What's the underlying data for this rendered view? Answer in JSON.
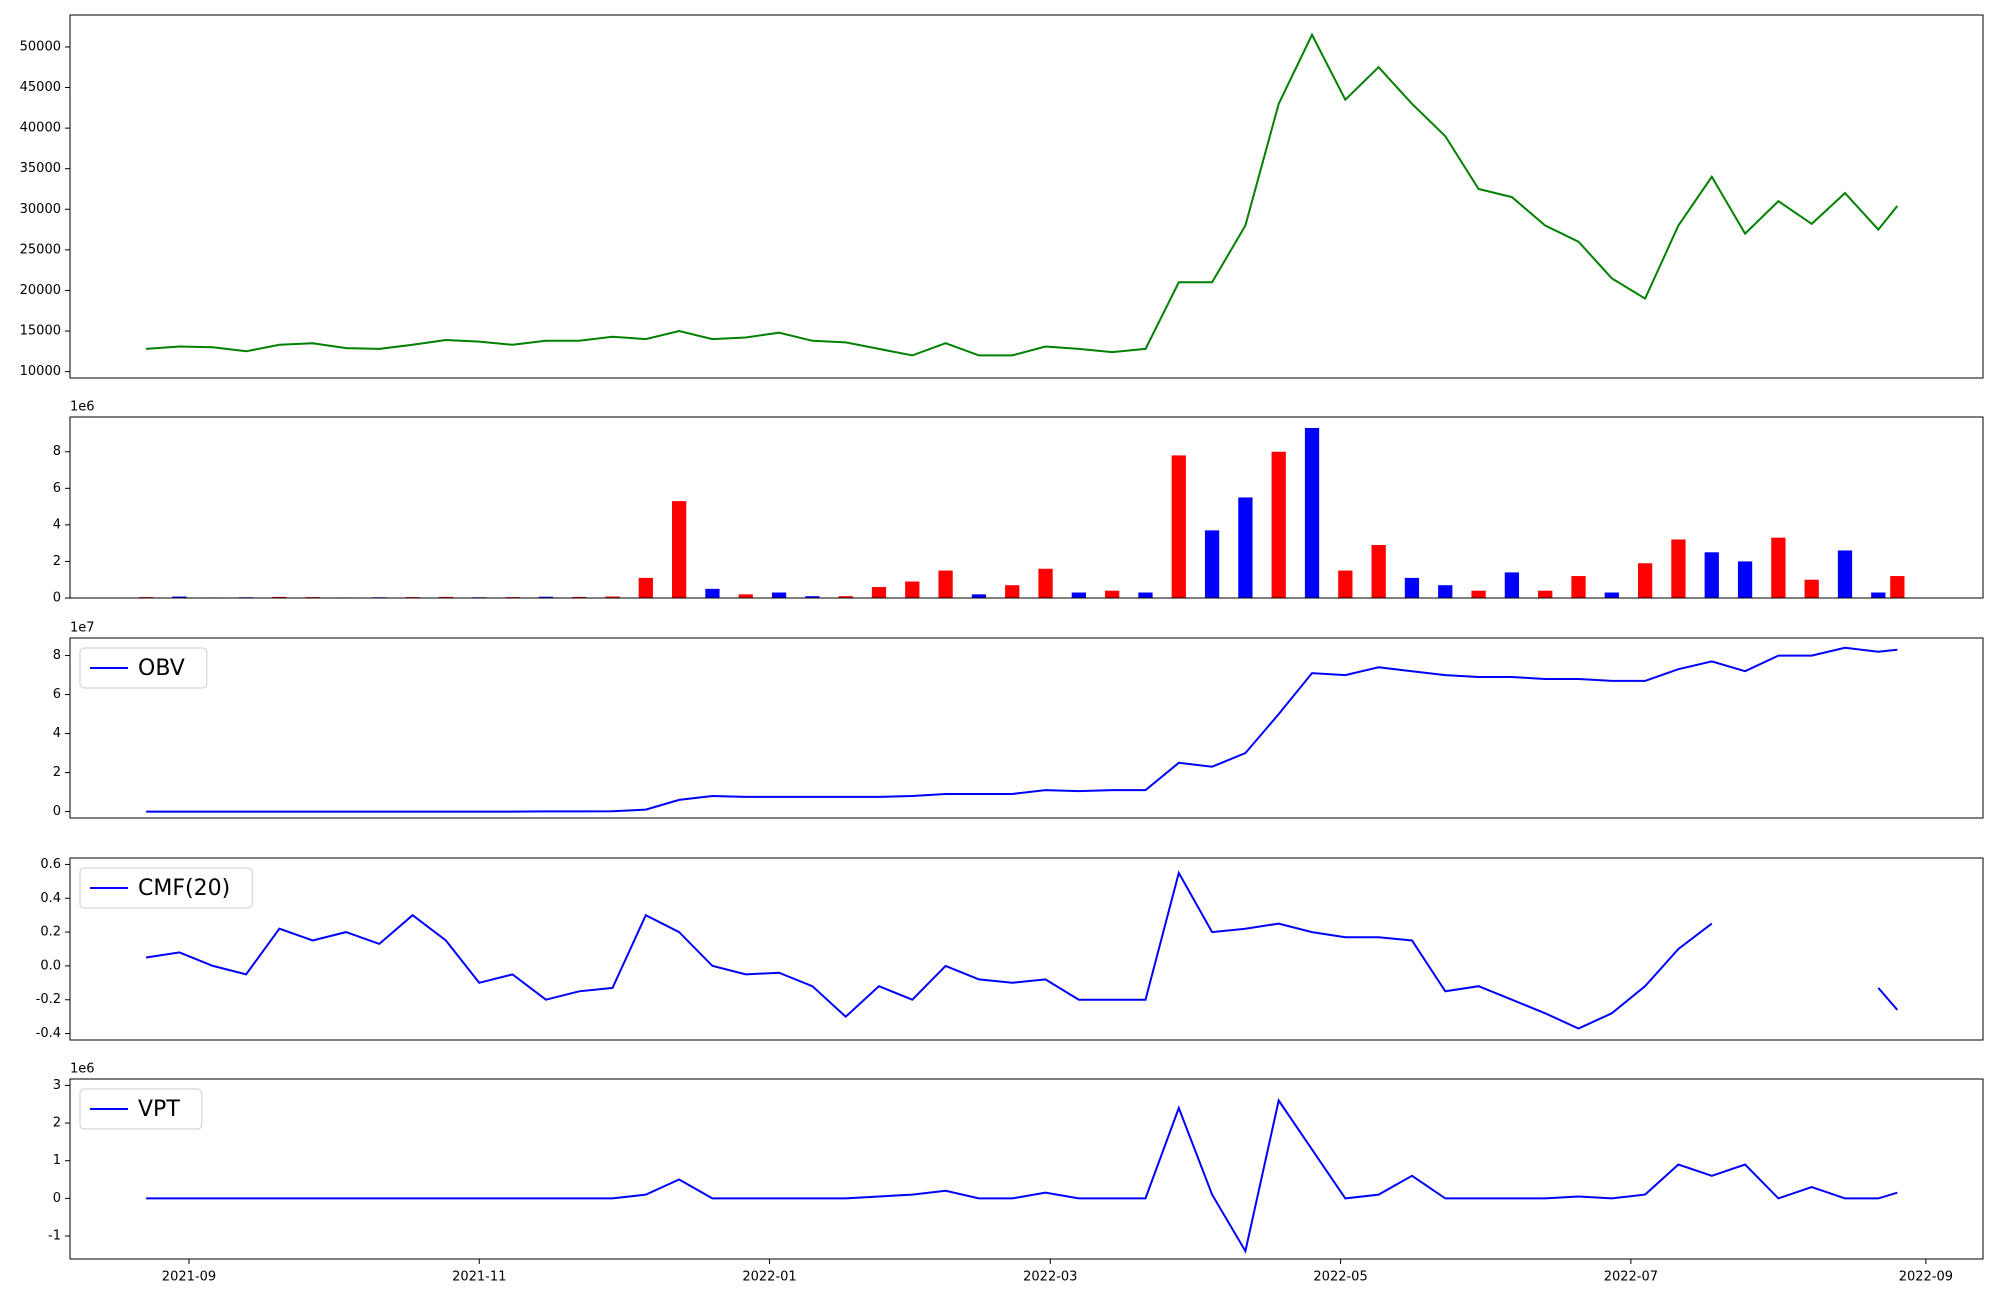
{
  "chart_data": [
    {
      "type": "line",
      "color": "green",
      "x": [
        "2021-08-23",
        "2021-08-30",
        "2021-09-06",
        "2021-09-13",
        "2021-09-20",
        "2021-09-27",
        "2021-10-04",
        "2021-10-11",
        "2021-10-18",
        "2021-10-25",
        "2021-11-01",
        "2021-11-08",
        "2021-11-15",
        "2021-11-22",
        "2021-11-29",
        "2021-12-06",
        "2021-12-13",
        "2021-12-20",
        "2021-12-27",
        "2022-01-03",
        "2022-01-10",
        "2022-01-17",
        "2022-01-24",
        "2022-01-31",
        "2022-02-07",
        "2022-02-14",
        "2022-02-21",
        "2022-02-28",
        "2022-03-07",
        "2022-03-14",
        "2022-03-21",
        "2022-03-28",
        "2022-04-04",
        "2022-04-11",
        "2022-04-18",
        "2022-04-25",
        "2022-05-02",
        "2022-05-09",
        "2022-05-16",
        "2022-05-23",
        "2022-05-30",
        "2022-06-06",
        "2022-06-13",
        "2022-06-20",
        "2022-06-27",
        "2022-07-04",
        "2022-07-11",
        "2022-07-18",
        "2022-07-25",
        "2022-08-01",
        "2022-08-08",
        "2022-08-15",
        "2022-08-22",
        "2022-08-26"
      ],
      "values": [
        12800,
        13100,
        13000,
        12500,
        13300,
        13500,
        12900,
        12800,
        13300,
        13900,
        13700,
        13300,
        13800,
        13800,
        14300,
        14000,
        15000,
        14000,
        14200,
        14800,
        13800,
        13600,
        12800,
        12000,
        13500,
        12000,
        12000,
        13100,
        12800,
        12400,
        12800,
        21000,
        21000,
        28000,
        43000,
        51500,
        43500,
        47500,
        43000,
        39000,
        32500,
        31500,
        28000,
        26000,
        21500,
        19000,
        28000,
        34000,
        27000,
        31000,
        28200,
        32000,
        27500,
        30400
      ],
      "xlim": [
        "2021-08-07",
        "2022-09-13"
      ],
      "ylim": [
        9213,
        53937
      ],
      "yticks": [
        10000,
        15000,
        20000,
        25000,
        30000,
        35000,
        40000,
        45000,
        50000
      ]
    },
    {
      "type": "bar",
      "offset_label": "1e6",
      "x": [
        "2021-08-23",
        "2021-08-30",
        "2021-09-06",
        "2021-09-13",
        "2021-09-20",
        "2021-09-27",
        "2021-10-04",
        "2021-10-11",
        "2021-10-18",
        "2021-10-25",
        "2021-11-01",
        "2021-11-08",
        "2021-11-15",
        "2021-11-22",
        "2021-11-29",
        "2021-12-06",
        "2021-12-13",
        "2021-12-20",
        "2021-12-27",
        "2022-01-03",
        "2022-01-10",
        "2022-01-17",
        "2022-01-24",
        "2022-01-31",
        "2022-02-07",
        "2022-02-14",
        "2022-02-21",
        "2022-02-28",
        "2022-03-07",
        "2022-03-14",
        "2022-03-21",
        "2022-03-28",
        "2022-04-04",
        "2022-04-11",
        "2022-04-18",
        "2022-04-25",
        "2022-05-02",
        "2022-05-09",
        "2022-05-16",
        "2022-05-23",
        "2022-05-30",
        "2022-06-06",
        "2022-06-13",
        "2022-06-20",
        "2022-06-27",
        "2022-07-04",
        "2022-07-11",
        "2022-07-18",
        "2022-07-25",
        "2022-08-01",
        "2022-08-08",
        "2022-08-15",
        "2022-08-22",
        "2022-08-26"
      ],
      "values": [
        0.05,
        0.08,
        0.03,
        0.04,
        0.06,
        0.05,
        0.03,
        0.04,
        0.05,
        0.06,
        0.04,
        0.05,
        0.07,
        0.06,
        0.08,
        1.1,
        5.3,
        0.5,
        0.2,
        0.3,
        0.1,
        0.1,
        0.6,
        0.9,
        1.5,
        0.2,
        0.7,
        1.6,
        0.3,
        0.4,
        0.3,
        7.8,
        3.7,
        5.5,
        8.0,
        9.3,
        1.5,
        2.9,
        1.1,
        0.7,
        0.4,
        1.4,
        0.4,
        1.2,
        0.3,
        1.9,
        3.2,
        2.5,
        2.0,
        3.3,
        1.0,
        2.6,
        0.3,
        1.2
      ],
      "colors": [
        "red",
        "blue",
        "red",
        "blue",
        "red",
        "red",
        "blue",
        "blue",
        "red",
        "red",
        "blue",
        "red",
        "blue",
        "red",
        "red",
        "red",
        "red",
        "blue",
        "red",
        "blue",
        "blue",
        "red",
        "red",
        "red",
        "red",
        "blue",
        "red",
        "red",
        "blue",
        "red",
        "blue",
        "red",
        "blue",
        "blue",
        "red",
        "blue",
        "red",
        "red",
        "blue",
        "blue",
        "red",
        "blue",
        "red",
        "red",
        "blue",
        "red",
        "red",
        "blue",
        "blue",
        "red",
        "red",
        "blue",
        "blue",
        "red"
      ],
      "xlim": [
        "2021-08-07",
        "2022-09-13"
      ],
      "ylim": [
        0,
        9.9
      ],
      "yticks": [
        0,
        2,
        4,
        6,
        8
      ]
    },
    {
      "type": "line",
      "offset_label": "1e7",
      "legend": "upper left",
      "x": [
        "2021-08-23",
        "2021-08-30",
        "2021-09-06",
        "2021-09-13",
        "2021-09-20",
        "2021-09-27",
        "2021-10-04",
        "2021-10-11",
        "2021-10-18",
        "2021-10-25",
        "2021-11-01",
        "2021-11-08",
        "2021-11-15",
        "2021-11-22",
        "2021-11-29",
        "2021-12-06",
        "2021-12-13",
        "2021-12-20",
        "2021-12-27",
        "2022-01-03",
        "2022-01-10",
        "2022-01-17",
        "2022-01-24",
        "2022-01-31",
        "2022-02-07",
        "2022-02-14",
        "2022-02-21",
        "2022-02-28",
        "2022-03-07",
        "2022-03-14",
        "2022-03-21",
        "2022-03-28",
        "2022-04-04",
        "2022-04-11",
        "2022-04-18",
        "2022-04-25",
        "2022-05-02",
        "2022-05-09",
        "2022-05-16",
        "2022-05-23",
        "2022-05-30",
        "2022-06-06",
        "2022-06-13",
        "2022-06-20",
        "2022-06-27",
        "2022-07-04",
        "2022-07-11",
        "2022-07-18",
        "2022-07-25",
        "2022-08-01",
        "2022-08-08",
        "2022-08-15",
        "2022-08-22",
        "2022-08-26"
      ],
      "series": [
        {
          "name": "OBV",
          "color": "blue",
          "values": [
            0,
            0,
            0,
            0,
            0,
            0,
            0,
            0,
            0,
            0,
            0,
            0,
            0.01,
            0.01,
            0.02,
            0.1,
            0.6,
            0.8,
            0.75,
            0.75,
            0.75,
            0.75,
            0.75,
            0.8,
            0.9,
            0.9,
            0.9,
            1.1,
            1.05,
            1.1,
            1.1,
            2.5,
            2.3,
            3.0,
            5.0,
            7.1,
            7.0,
            7.4,
            7.2,
            7.0,
            6.9,
            6.9,
            6.8,
            6.8,
            6.7,
            6.7,
            7.3,
            7.7,
            7.2,
            8.0,
            8.0,
            8.4,
            8.2,
            8.3
          ]
        }
      ],
      "xlim": [
        "2021-08-07",
        "2022-09-13"
      ],
      "ylim": [
        -0.33,
        8.9
      ],
      "yticks": [
        0,
        2,
        4,
        6,
        8
      ]
    },
    {
      "type": "line",
      "legend": "upper left",
      "x": [
        "2021-08-23",
        "2021-08-30",
        "2021-09-06",
        "2021-09-13",
        "2021-09-20",
        "2021-09-27",
        "2021-10-04",
        "2021-10-11",
        "2021-10-18",
        "2021-10-25",
        "2021-11-01",
        "2021-11-08",
        "2021-11-15",
        "2021-11-22",
        "2021-11-29",
        "2021-12-06",
        "2021-12-13",
        "2021-12-20",
        "2021-12-27",
        "2022-01-03",
        "2022-01-10",
        "2022-01-17",
        "2022-01-24",
        "2022-01-31",
        "2022-02-07",
        "2022-02-14",
        "2022-02-21",
        "2022-02-28",
        "2022-03-07",
        "2022-03-14",
        "2022-03-21",
        "2022-03-28",
        "2022-04-04",
        "2022-04-11",
        "2022-04-18",
        "2022-04-25",
        "2022-05-02",
        "2022-05-09",
        "2022-05-16",
        "2022-05-23",
        "2022-05-30",
        "2022-06-06",
        "2022-06-13",
        "2022-06-20",
        "2022-06-27",
        "2022-07-04",
        "2022-07-11",
        "2022-07-18",
        "2022-07-25",
        "2022-08-01",
        "2022-08-08",
        "2022-08-15",
        "2022-08-22",
        "2022-08-26"
      ],
      "series": [
        {
          "name": "CMF(20)",
          "color": "blue",
          "values": [
            0.05,
            0.08,
            0.0,
            -0.05,
            0.22,
            0.15,
            0.2,
            0.13,
            0.3,
            0.15,
            -0.1,
            -0.05,
            -0.2,
            -0.15,
            -0.13,
            0.3,
            0.2,
            0.0,
            -0.05,
            -0.04,
            -0.12,
            -0.3,
            -0.12,
            -0.2,
            0.0,
            -0.08,
            -0.1,
            -0.08,
            -0.2,
            -0.2,
            -0.2,
            0.55,
            0.2,
            0.22,
            0.25,
            0.2,
            0.17,
            0.17,
            0.15,
            -0.15,
            -0.12,
            -0.2,
            -0.28,
            -0.37,
            -0.28,
            -0.12,
            0.1,
            0.25,
            null,
            null,
            null,
            null,
            -0.13,
            -0.26
          ]
        }
      ],
      "xlim": [
        "2021-08-07",
        "2022-09-13"
      ],
      "ylim": [
        -0.438,
        0.638
      ],
      "yticks": [
        -0.4,
        -0.2,
        {
          "value": 0,
          "label": "0.0"
        },
        0.2,
        0.4,
        0.6
      ]
    },
    {
      "type": "line",
      "offset_label": "1e6",
      "legend": "upper left",
      "x": [
        "2021-08-23",
        "2021-08-30",
        "2021-09-06",
        "2021-09-13",
        "2021-09-20",
        "2021-09-27",
        "2021-10-04",
        "2021-10-11",
        "2021-10-18",
        "2021-10-25",
        "2021-11-01",
        "2021-11-08",
        "2021-11-15",
        "2021-11-22",
        "2021-11-29",
        "2021-12-06",
        "2021-12-13",
        "2021-12-20",
        "2021-12-27",
        "2022-01-03",
        "2022-01-10",
        "2022-01-17",
        "2022-01-24",
        "2022-01-31",
        "2022-02-07",
        "2022-02-14",
        "2022-02-21",
        "2022-02-28",
        "2022-03-07",
        "2022-03-14",
        "2022-03-21",
        "2022-03-28",
        "2022-04-04",
        "2022-04-11",
        "2022-04-18",
        "2022-04-25",
        "2022-05-02",
        "2022-05-09",
        "2022-05-16",
        "2022-05-23",
        "2022-05-30",
        "2022-06-06",
        "2022-06-13",
        "2022-06-20",
        "2022-06-27",
        "2022-07-04",
        "2022-07-11",
        "2022-07-18",
        "2022-07-25",
        "2022-08-01",
        "2022-08-08",
        "2022-08-15",
        "2022-08-22",
        "2022-08-26"
      ],
      "series": [
        {
          "name": "VPT",
          "color": "blue",
          "values": [
            0,
            0,
            0,
            0,
            0,
            0,
            0,
            0,
            0,
            0,
            0,
            0,
            0,
            0,
            0,
            0.1,
            0.5,
            0.0,
            0.0,
            0.0,
            0.0,
            0.0,
            0.05,
            0.1,
            0.2,
            0.0,
            0.0,
            0.15,
            0.0,
            0.0,
            0.0,
            2.4,
            0.1,
            -1.4,
            2.6,
            1.3,
            0.0,
            0.1,
            0.6,
            0.0,
            0.0,
            0.0,
            0.0,
            0.05,
            0.0,
            0.1,
            0.9,
            0.6,
            0.9,
            0.0,
            0.3,
            0.0,
            0.0,
            0.15
          ]
        }
      ],
      "xlim": [
        "2021-08-07",
        "2022-09-13"
      ],
      "ylim": [
        -1.61,
        3.17
      ],
      "yticks": [
        -1,
        0,
        1,
        2,
        3
      ],
      "xticks": [
        {
          "value": "2021-09-01",
          "label": "2021-09"
        },
        {
          "value": "2021-11-01",
          "label": "2021-11"
        },
        {
          "value": "2022-01-01",
          "label": "2022-01"
        },
        {
          "value": "2022-03-01",
          "label": "2022-03"
        },
        {
          "value": "2022-05-01",
          "label": "2022-05"
        },
        {
          "value": "2022-07-01",
          "label": "2022-07"
        },
        {
          "value": "2022-09-01",
          "label": "2022-09"
        }
      ]
    }
  ]
}
